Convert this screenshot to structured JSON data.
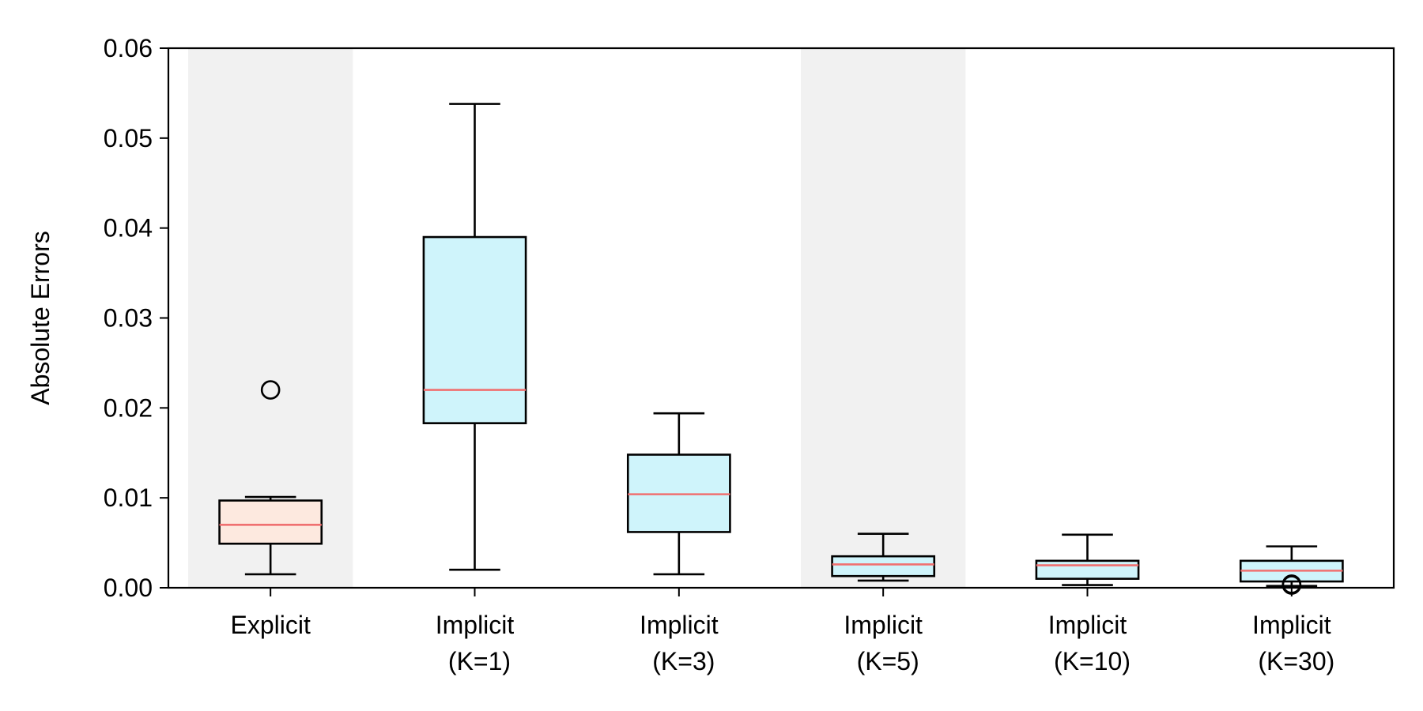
{
  "chart_data": {
    "type": "box",
    "ylabel": "Absolute Errors",
    "xlabel": "",
    "ylim": [
      0,
      0.06
    ],
    "yticks": [
      "0.00",
      "0.01",
      "0.02",
      "0.03",
      "0.04",
      "0.05",
      "0.06"
    ],
    "grid": false,
    "shaded_categories": [
      0,
      3
    ],
    "colors": {
      "explicit_fill": "#fde9df",
      "implicit_fill": "#cff4fb",
      "median": "#f07070",
      "shade": "#f1f1f1",
      "stroke": "#000000"
    },
    "categories": [
      {
        "line1": "Explicit",
        "line2": "",
        "whisker_low": 0.0015,
        "q1": 0.0049,
        "median": 0.007,
        "q3": 0.0097,
        "whisker_high": 0.0101,
        "outliers": [
          0.022
        ],
        "fill": "explicit"
      },
      {
        "line1": "Implicit",
        "line2": "(K=1)",
        "whisker_low": 0.002,
        "q1": 0.0183,
        "median": 0.022,
        "q3": 0.039,
        "whisker_high": 0.0538,
        "outliers": [],
        "fill": "implicit"
      },
      {
        "line1": "Implicit",
        "line2": "(K=3)",
        "whisker_low": 0.0015,
        "q1": 0.0062,
        "median": 0.0104,
        "q3": 0.0148,
        "whisker_high": 0.0194,
        "outliers": [],
        "fill": "implicit"
      },
      {
        "line1": "Implicit",
        "line2": "(K=5)",
        "whisker_low": 0.0008,
        "q1": 0.0013,
        "median": 0.0026,
        "q3": 0.0035,
        "whisker_high": 0.006,
        "outliers": [],
        "fill": "implicit"
      },
      {
        "line1": "Implicit",
        "line2": "(K=10)",
        "whisker_low": 0.0003,
        "q1": 0.001,
        "median": 0.0025,
        "q3": 0.003,
        "whisker_high": 0.0059,
        "outliers": [],
        "fill": "implicit"
      },
      {
        "line1": "Implicit",
        "line2": "(K=30)",
        "whisker_low": 0.0002,
        "q1": 0.0007,
        "median": 0.0019,
        "q3": 0.003,
        "whisker_high": 0.0046,
        "outliers": [
          0.0003,
          0.0004
        ],
        "fill": "implicit"
      }
    ]
  }
}
